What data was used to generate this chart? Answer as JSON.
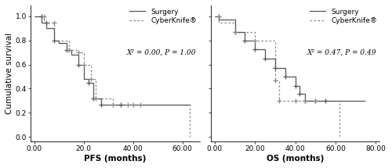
{
  "pfs": {
    "surgery_x": [
      0,
      3,
      3,
      5,
      5,
      8,
      8,
      10,
      10,
      13,
      13,
      15,
      15,
      18,
      18,
      20,
      20,
      22,
      22,
      24,
      24,
      27,
      27,
      30,
      30,
      35,
      35,
      63
    ],
    "surgery_y": [
      1.0,
      1.0,
      0.95,
      0.95,
      0.9,
      0.9,
      0.8,
      0.8,
      0.78,
      0.78,
      0.72,
      0.72,
      0.68,
      0.68,
      0.6,
      0.6,
      0.48,
      0.48,
      0.45,
      0.45,
      0.32,
      0.32,
      0.27,
      0.27,
      0.27,
      0.27,
      0.27,
      0.27
    ],
    "surgery_ticks_x": [
      3,
      5,
      8,
      13,
      18,
      22,
      24,
      27,
      35
    ],
    "surgery_ticks_y": [
      1.0,
      0.95,
      0.8,
      0.72,
      0.6,
      0.45,
      0.32,
      0.27,
      0.27
    ],
    "cyber_x": [
      0,
      4,
      4,
      8,
      8,
      14,
      14,
      18,
      18,
      20,
      20,
      23,
      23,
      25,
      25,
      28,
      28,
      32,
      32,
      38,
      38,
      40,
      40,
      43,
      43,
      63,
      63
    ],
    "cyber_y": [
      1.0,
      1.0,
      0.95,
      0.95,
      0.8,
      0.8,
      0.72,
      0.72,
      0.7,
      0.7,
      0.6,
      0.6,
      0.48,
      0.48,
      0.32,
      0.32,
      0.32,
      0.32,
      0.27,
      0.27,
      0.27,
      0.27,
      0.27,
      0.27,
      0.27,
      0.27,
      0.0
    ],
    "cyber_ticks_x": [
      4,
      8,
      14,
      18,
      20,
      23,
      25,
      32,
      38,
      40,
      43
    ],
    "cyber_ticks_y": [
      1.0,
      0.95,
      0.72,
      0.7,
      0.6,
      0.48,
      0.32,
      0.27,
      0.27,
      0.27,
      0.27
    ],
    "xlabel": "PFS (months)",
    "ylabel": "Cumulative survival",
    "xlim": [
      -1.5,
      67
    ],
    "ylim": [
      -0.04,
      1.09
    ],
    "xticks": [
      0,
      20,
      40,
      60
    ],
    "xtick_labels": [
      "0.00",
      "20.0",
      "40.00",
      "60.00"
    ],
    "yticks": [
      0.0,
      0.2,
      0.4,
      0.6,
      0.8,
      1.0
    ],
    "ytick_labels": [
      "0.0",
      "0.2",
      "0.4",
      "0.6",
      "0.8",
      "1.0"
    ],
    "legend_text": "X² = 0.00, P = 1.00"
  },
  "os": {
    "surgery_x": [
      0,
      2,
      2,
      10,
      10,
      15,
      15,
      20,
      20,
      25,
      25,
      30,
      30,
      35,
      35,
      40,
      40,
      42,
      42,
      45,
      45,
      50,
      50,
      55,
      55,
      63,
      63,
      75
    ],
    "surgery_y": [
      1.0,
      1.0,
      0.97,
      0.97,
      0.87,
      0.87,
      0.8,
      0.8,
      0.73,
      0.73,
      0.65,
      0.65,
      0.57,
      0.57,
      0.5,
      0.5,
      0.42,
      0.42,
      0.36,
      0.36,
      0.3,
      0.3,
      0.3,
      0.3,
      0.3,
      0.3,
      0.3,
      0.3
    ],
    "surgery_ticks_x": [
      2,
      10,
      15,
      20,
      25,
      30,
      35,
      40,
      42,
      45,
      50,
      55
    ],
    "surgery_ticks_y": [
      1.0,
      0.87,
      0.8,
      0.73,
      0.65,
      0.57,
      0.5,
      0.42,
      0.36,
      0.3,
      0.3,
      0.3
    ],
    "cyber_x": [
      0,
      2,
      2,
      10,
      10,
      20,
      20,
      30,
      30,
      32,
      32,
      40,
      40,
      45,
      45,
      50,
      50,
      62,
      62
    ],
    "cyber_y": [
      1.0,
      1.0,
      0.95,
      0.95,
      0.87,
      0.87,
      0.8,
      0.8,
      0.47,
      0.47,
      0.3,
      0.3,
      0.3,
      0.3,
      0.3,
      0.3,
      0.3,
      0.3,
      0.0
    ],
    "cyber_ticks_x": [
      2,
      10,
      20,
      30,
      32,
      40,
      45,
      50
    ],
    "cyber_ticks_y": [
      1.0,
      0.87,
      0.8,
      0.47,
      0.3,
      0.3,
      0.3,
      0.3
    ],
    "xlabel": "OS (months)",
    "ylabel": "Cumulative survival",
    "xlim": [
      -2,
      82
    ],
    "ylim": [
      -0.04,
      1.09
    ],
    "xticks": [
      0,
      20,
      40,
      60,
      80
    ],
    "xtick_labels": [
      "0.00",
      "20.00",
      "40.00",
      "60.00",
      "80.00"
    ],
    "yticks": [
      0.0,
      0.2,
      0.4,
      0.6,
      0.8,
      1.0
    ],
    "ytick_labels": [
      "0.0",
      "0.2",
      "0.4",
      "0.6",
      "0.8",
      "1.0"
    ],
    "legend_text": "X² = 0.47, P = 0.49"
  },
  "line_color_surgery": "#555555",
  "line_color_cyber": "#888888",
  "tick_marker": "+",
  "tick_markersize": 5,
  "tick_markeredgewidth": 0.9,
  "label_surgery": "Surgery",
  "label_cyber": "CyberKnife®",
  "font_size": 6.5,
  "axis_label_fontsize": 7.5,
  "stat_fontsize": 6.5
}
